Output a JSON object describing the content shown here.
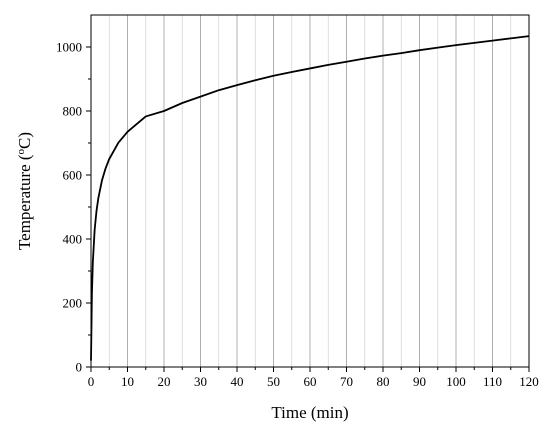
{
  "chart_data": {
    "type": "line",
    "title": "",
    "xlabel": "Time (min)",
    "ylabel_main": "Temperature (",
    "ylabel_sup": "o",
    "ylabel_tail": "C)",
    "xlim": [
      0,
      120
    ],
    "ylim": [
      0,
      1100
    ],
    "xticks": [
      0,
      10,
      20,
      30,
      40,
      50,
      60,
      70,
      80,
      90,
      100,
      110,
      120
    ],
    "yticks": [
      0,
      200,
      400,
      600,
      800,
      1000
    ],
    "grid": {
      "x_major": true,
      "x_minor": true,
      "y": false
    },
    "legend": "none",
    "line_color": "#000000",
    "grid_major_color": "#b0b0b0",
    "grid_minor_color": "#d2d2d2",
    "series": [
      {
        "x": [
          0,
          0.25,
          0.5,
          1,
          1.5,
          2,
          3,
          4,
          5,
          7.5,
          10,
          15,
          20,
          25,
          30,
          35,
          40,
          45,
          50,
          55,
          60,
          65,
          70,
          75,
          80,
          85,
          90,
          95,
          100,
          105,
          110,
          115,
          120
        ],
        "y": [
          20,
          230,
          327,
          429,
          487,
          527,
          583,
          621,
          650,
          701,
          735,
          783,
          800,
          825,
          845,
          865,
          881,
          896,
          910,
          922,
          933,
          944,
          954,
          964,
          973,
          981,
          990,
          998,
          1006,
          1013,
          1020,
          1027,
          1034
        ]
      }
    ]
  }
}
